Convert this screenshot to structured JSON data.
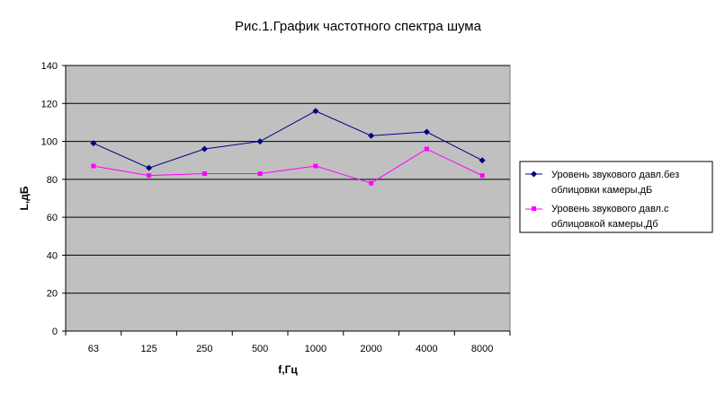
{
  "chart_data": {
    "type": "line",
    "title": "Рис.1.График частотного спектра шума",
    "xlabel": "f,Гц",
    "ylabel": "L,дБ",
    "categories": [
      "63",
      "125",
      "250",
      "500",
      "1000",
      "2000",
      "4000",
      "8000"
    ],
    "ylim": [
      0,
      140
    ],
    "yticks": [
      0,
      20,
      40,
      60,
      80,
      100,
      120,
      140
    ],
    "grid": true,
    "legend_position": "right",
    "plot_background": "#c0c0c0",
    "series": [
      {
        "name_line1": "Уровень звукового давл.без",
        "name_line2": "облицовки камеры,дБ",
        "values": [
          99,
          86,
          96,
          100,
          116,
          103,
          105,
          90
        ],
        "color": "#000080",
        "marker": "diamond"
      },
      {
        "name_line1": "Уровень звукового давл.с",
        "name_line2": "облицовкой камеры,Дб",
        "values": [
          87,
          82,
          83,
          83,
          87,
          78,
          96,
          82
        ],
        "color": "#ff00ff",
        "marker": "square"
      }
    ]
  }
}
